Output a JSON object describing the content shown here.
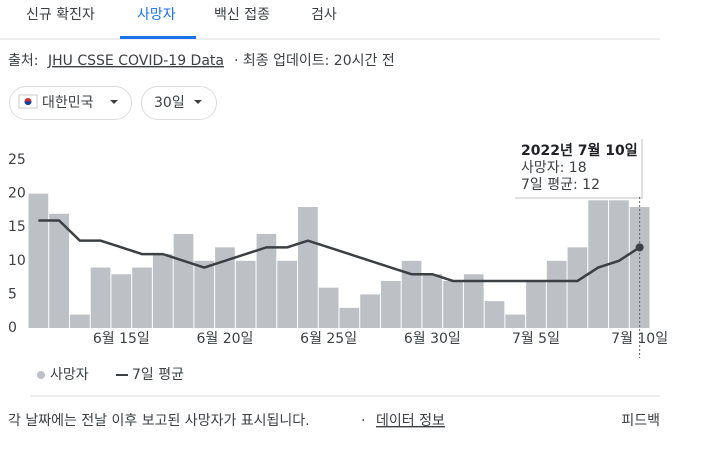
{
  "tabs": [
    "신규 확진자",
    "사망자",
    "백신 접종",
    "검사"
  ],
  "source": {
    "label": "출처:",
    "link": "JHU CSSE COVID-19 Data",
    "updated": "· 최종 업데이트: 20시간 전"
  },
  "filters": {
    "region": "대한민국",
    "period": "30일"
  },
  "chart_data": {
    "type": "bar",
    "categories": [
      null,
      null,
      null,
      null,
      "6월 15일",
      null,
      null,
      null,
      null,
      "6월 20일",
      null,
      null,
      null,
      null,
      "6월 25일",
      null,
      null,
      null,
      null,
      "6월 30일",
      null,
      null,
      null,
      null,
      "7월 5일",
      null,
      null,
      null,
      null,
      "7월 10일"
    ],
    "series": [
      {
        "name": "사망자",
        "type": "bar",
        "color": "#bdc1c6",
        "values": [
          20,
          17,
          2,
          9,
          8,
          9,
          11,
          14,
          10,
          12,
          10,
          14,
          10,
          18,
          6,
          3,
          5,
          7,
          10,
          8,
          7,
          8,
          4,
          2,
          7,
          10,
          12,
          19,
          19,
          18
        ]
      },
      {
        "name": "7일 평균",
        "type": "line",
        "color": "#3c4043",
        "values": [
          16,
          16,
          13,
          13,
          12,
          11,
          11,
          10,
          9,
          10,
          11,
          12,
          12,
          13,
          12,
          11,
          10,
          9,
          8,
          8,
          7,
          7,
          7,
          7,
          7,
          7,
          7,
          9,
          10,
          12
        ]
      }
    ],
    "ylim": [
      0,
      25
    ],
    "yticks": [
      0,
      5,
      10,
      15,
      20,
      25
    ],
    "grid": false,
    "tooltip": {
      "date": "2022년 7월 10일",
      "rows": [
        "사망자: 18",
        "7일 평균: 12"
      ]
    }
  },
  "footer": {
    "note": "각 날짜에는 전날 이후 보고된 사망자가 표시됩니다.",
    "separator": "·",
    "link": "데이터 정보",
    "feedback": "피드백"
  }
}
